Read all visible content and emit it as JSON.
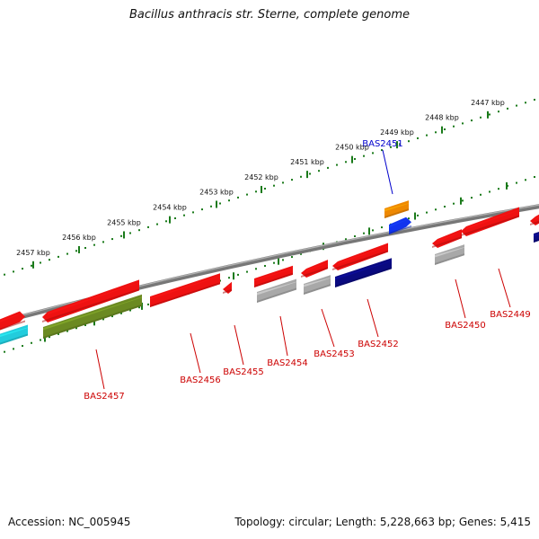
{
  "title": "Bacillus anthracis str. Sterne, complete genome",
  "footer": {
    "accession": "Accession: NC_005945",
    "summary": "Topology: circular; Length: 5,228,663 bp; Genes: 5,415"
  },
  "colors": {
    "backbone": "#777777",
    "tick": "#1a7a1a",
    "label_red": "#cc0000",
    "label_blue": "#0000cc",
    "red": "#ee1111",
    "gray": "#a8a8a8",
    "navy": "#0a0a80",
    "olive": "#6b8a22",
    "cyan": "#22ccdd",
    "orange": "#ee8800",
    "blue": "#1133ee"
  },
  "kbp_ticks": [
    {
      "kbp": 2457,
      "label": "2457 kbp"
    },
    {
      "kbp": 2456,
      "label": "2456 kbp"
    },
    {
      "kbp": 2455,
      "label": "2455 kbp"
    },
    {
      "kbp": 2454,
      "label": "2454 kbp"
    },
    {
      "kbp": 2453,
      "label": "2453 kbp"
    },
    {
      "kbp": 2452,
      "label": "2452 kbp"
    },
    {
      "kbp": 2451,
      "label": "2451 kbp"
    },
    {
      "kbp": 2450,
      "label": "2450 kbp"
    },
    {
      "kbp": 2449,
      "label": "2449 kbp"
    },
    {
      "kbp": 2448,
      "label": "2448 kbp"
    },
    {
      "kbp": 2447,
      "label": "2447 kbp"
    }
  ],
  "features": [
    {
      "label": "",
      "type": "gene",
      "color": "red"
    },
    {
      "label": "",
      "type": "cds",
      "color": "cyan"
    },
    {
      "label": "BAS2457",
      "type": "gene",
      "color": "red"
    },
    {
      "label": "",
      "type": "cds",
      "color": "olive"
    },
    {
      "label": "BAS2456",
      "type": "gene",
      "color": "red"
    },
    {
      "label": "BAS2455",
      "type": "gene",
      "color": "red"
    },
    {
      "label": "BAS2454",
      "type": "gene",
      "color": "red"
    },
    {
      "label": "",
      "type": "cds",
      "color": "gray"
    },
    {
      "label": "BAS2453",
      "type": "gene",
      "color": "red"
    },
    {
      "label": "",
      "type": "cds",
      "color": "gray"
    },
    {
      "label": "BAS2452",
      "type": "gene",
      "color": "red"
    },
    {
      "label": "",
      "type": "cds",
      "color": "navy"
    },
    {
      "label": "BAS2451",
      "type": "gene",
      "color": "orange"
    },
    {
      "label": "",
      "type": "cds",
      "color": "blue"
    },
    {
      "label": "BAS2450",
      "type": "gene",
      "color": "red"
    },
    {
      "label": "",
      "type": "cds",
      "color": "gray"
    },
    {
      "label": "BAS2449",
      "type": "gene",
      "color": "red"
    },
    {
      "label": "",
      "type": "gene",
      "color": "red"
    },
    {
      "label": "",
      "type": "cds",
      "color": "navy"
    }
  ]
}
